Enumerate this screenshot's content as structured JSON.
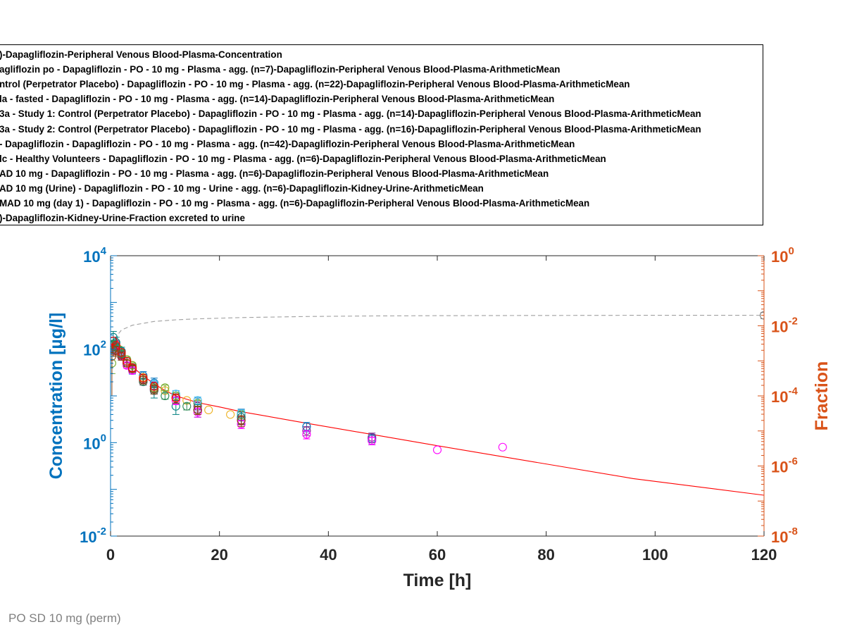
{
  "legend": {
    "entries": [
      ")-Dapagliflozin-Peripheral Venous Blood-Plasma-Concentration",
      "agliflozin po - Dapagliflozin - PO - 10 mg - Plasma - agg. (n=7)-Dapagliflozin-Peripheral Venous Blood-Plasma-ArithmeticMean",
      "ntrol (Perpetrator Placebo) - Dapagliflozin - PO - 10 mg - Plasma - agg. (n=22)-Dapagliflozin-Peripheral Venous Blood-Plasma-ArithmeticMean",
      "la - fasted - Dapagliflozin - PO - 10 mg - Plasma - agg. (n=14)-Dapagliflozin-Peripheral Venous Blood-Plasma-ArithmeticMean",
      "3a - Study 1: Control (Perpetrator Placebo) - Dapagliflozin - PO - 10 mg - Plasma - agg. (n=14)-Dapagliflozin-Peripheral Venous Blood-Plasma-ArithmeticMean",
      "3a - Study 2: Control (Perpetrator Placebo) - Dapagliflozin - PO - 10 mg - Plasma - agg. (n=16)-Dapagliflozin-Peripheral Venous Blood-Plasma-ArithmeticMean",
      " - Dapagliflozin - Dapagliflozin - PO - 10 mg - Plasma - agg. (n=42)-Dapagliflozin-Peripheral Venous Blood-Plasma-ArithmeticMean",
      "lc - Healthy Volunteers - Dapagliflozin - PO - 10 mg - Plasma - agg. (n=6)-Dapagliflozin-Peripheral Venous Blood-Plasma-ArithmeticMean",
      "AD 10 mg - Dapagliflozin - PO - 10 mg - Plasma - agg. (n=6)-Dapagliflozin-Peripheral Venous Blood-Plasma-ArithmeticMean",
      "AD 10 mg (Urine) - Dapagliflozin - PO - 10 mg - Urine - agg. (n=6)-Dapagliflozin-Kidney-Urine-ArithmeticMean",
      "MAD 10 mg (day 1) - Dapagliflozin - PO - 10 mg - Plasma - agg. (n=6)-Dapagliflozin-Peripheral Venous Blood-Plasma-ArithmeticMean",
      ")-Dapagliflozin-Kidney-Urine-Fraction excreted to urine"
    ]
  },
  "footnote": "PO SD 10 mg (perm)",
  "chart_data": {
    "type": "scatter",
    "xlabel": "Time [h]",
    "ylabel": "Concentration [µg/l]",
    "y2label": "Fraction",
    "xlim": [
      0,
      120
    ],
    "xticks": [
      0,
      20,
      40,
      60,
      80,
      100,
      120
    ],
    "ylim": [
      0.01,
      10000
    ],
    "yscale": "log",
    "yticks": [
      {
        "base": "10",
        "exp": "-2"
      },
      {
        "base": "10",
        "exp": "0"
      },
      {
        "base": "10",
        "exp": "2"
      },
      {
        "base": "10",
        "exp": "4"
      }
    ],
    "y2lim": [
      1e-08,
      1
    ],
    "y2scale": "log",
    "y2ticks": [
      {
        "base": "10",
        "exp": "-8"
      },
      {
        "base": "10",
        "exp": "-6"
      },
      {
        "base": "10",
        "exp": "-4"
      },
      {
        "base": "10",
        "exp": "-2"
      },
      {
        "base": "10",
        "exp": "0"
      }
    ],
    "grid": false,
    "legend_placement": "above plot",
    "colors": {
      "left_axis": "#0072BD",
      "right_axis": "#D95319",
      "simulation": "#FF0000",
      "fraction_sim": "#A0A0A0"
    },
    "series": [
      {
        "style": "line",
        "axis": "left",
        "color": "#FF0000",
        "x": [
          0,
          0.25,
          0.5,
          0.75,
          1,
          1.5,
          2,
          3,
          4,
          6,
          8,
          10,
          12,
          16,
          20,
          24,
          36,
          48,
          60,
          72,
          96,
          120
        ],
        "y": [
          0,
          120,
          145,
          135,
          120,
          95,
          78,
          55,
          42,
          27,
          18,
          13,
          10,
          7.2,
          5.8,
          4.6,
          2.6,
          1.5,
          0.86,
          0.5,
          0.17,
          0.075
        ]
      },
      {
        "style": "line",
        "axis": "right",
        "color": "#A0A0A0",
        "dash": true,
        "x": [
          0,
          0.5,
          1,
          2,
          4,
          8,
          12,
          16,
          24,
          36,
          48,
          60,
          72,
          96,
          120
        ],
        "y": [
          0,
          0.0026,
          0.0048,
          0.0076,
          0.0104,
          0.0133,
          0.0148,
          0.0158,
          0.0172,
          0.0184,
          0.0191,
          0.0195,
          0.0197,
          0.0199,
          0.02
        ]
      },
      {
        "style": "marker",
        "axis": "left",
        "color": "#0072BD",
        "x": [
          0.5,
          1,
          1.5,
          2,
          3,
          4,
          6,
          8,
          12,
          16,
          24,
          36,
          48
        ],
        "y": [
          150,
          110,
          95,
          80,
          55,
          40,
          27,
          19,
          10,
          7,
          4.2,
          2.2,
          1.2
        ],
        "err": [
          30,
          25,
          20,
          15,
          10,
          8,
          6,
          5,
          3,
          2,
          1,
          0.5,
          0.3
        ]
      },
      {
        "style": "marker",
        "axis": "left",
        "color": "#EDB120",
        "x": [
          0.5,
          1,
          2,
          3,
          4,
          6,
          8,
          10,
          12,
          14,
          18,
          22
        ],
        "y": [
          90,
          120,
          85,
          60,
          45,
          25,
          16,
          13,
          10,
          8,
          5,
          4
        ]
      },
      {
        "style": "marker",
        "axis": "left",
        "color": "#7E2F8E",
        "x": [
          0.5,
          1,
          2,
          4,
          6,
          8,
          12,
          16,
          24,
          36,
          48
        ],
        "y": [
          120,
          130,
          80,
          40,
          24,
          16,
          9,
          6,
          3.5,
          1.8,
          1.3
        ],
        "err": [
          25,
          20,
          15,
          8,
          5,
          4,
          2,
          1.5,
          1,
          0.4,
          0.3
        ]
      },
      {
        "style": "marker",
        "axis": "left",
        "color": "#77AC30",
        "x": [
          0.25,
          0.5,
          1,
          1.5,
          2,
          3,
          4,
          6,
          8,
          10,
          12,
          16,
          24
        ],
        "y": [
          50,
          100,
          110,
          100,
          85,
          60,
          45,
          24,
          15,
          15,
          10,
          7,
          4
        ],
        "err": [
          20,
          20,
          15,
          15,
          10,
          8,
          6,
          4,
          3,
          2,
          2,
          1,
          0.8
        ]
      },
      {
        "style": "marker",
        "axis": "left",
        "color": "#4DBEEE",
        "x": [
          1,
          2,
          4,
          8,
          12,
          16,
          24
        ],
        "y": [
          100,
          70,
          35,
          18,
          11,
          8,
          4.2
        ],
        "err": [
          20,
          12,
          6,
          3,
          2,
          1.5,
          0.8
        ]
      },
      {
        "style": "marker",
        "axis": "left",
        "color": "#A2142F",
        "x": [
          1,
          2,
          3,
          4,
          6,
          8,
          12,
          16,
          24
        ],
        "y": [
          110,
          75,
          50,
          38,
          22,
          14,
          9,
          5,
          3
        ],
        "err": [
          20,
          12,
          8,
          6,
          4,
          3,
          2,
          1,
          0.6
        ]
      },
      {
        "style": "marker",
        "axis": "left",
        "color": "#008080",
        "x": [
          0.5,
          1,
          2,
          4,
          8,
          12,
          16,
          24
        ],
        "y": [
          180,
          140,
          90,
          38,
          14,
          6,
          5,
          3.5
        ],
        "err": [
          60,
          40,
          20,
          8,
          5,
          2,
          1.5,
          1
        ]
      },
      {
        "style": "marker",
        "axis": "left",
        "color": "#FF00FF",
        "x": [
          0.5,
          1,
          2,
          3,
          4,
          6,
          8,
          12,
          16,
          24,
          36,
          48,
          60,
          72
        ],
        "y": [
          100,
          90,
          70,
          45,
          35,
          20,
          13,
          8,
          4.5,
          2.5,
          1.5,
          1.1,
          0.7,
          0.8
        ],
        "err": [
          20,
          15,
          10,
          6,
          5,
          3,
          2,
          1.5,
          1,
          0.5,
          0.3,
          0.2,
          0,
          0
        ]
      },
      {
        "style": "marker",
        "axis": "left",
        "color": "#2E8B57",
        "x": [
          0.25,
          0.5,
          1,
          2,
          4,
          6,
          8,
          10,
          14
        ],
        "y": [
          120,
          130,
          110,
          80,
          40,
          20,
          13,
          10,
          6
        ],
        "err": [
          20,
          20,
          15,
          10,
          6,
          3,
          2,
          1.5,
          1
        ]
      },
      {
        "style": "marker",
        "axis": "left",
        "color": "#8B4513",
        "x": [
          0.25,
          0.5,
          1,
          2,
          3,
          4,
          6,
          8,
          12,
          16,
          24
        ],
        "y": [
          70,
          100,
          95,
          70,
          50,
          38,
          22,
          14,
          9,
          5,
          3
        ],
        "err": [
          60,
          30,
          20,
          12,
          8,
          6,
          4,
          3,
          2,
          1,
          0.8
        ]
      },
      {
        "style": "marker",
        "axis": "left",
        "color": "#FF0000",
        "x": [
          0.5,
          1,
          2,
          3,
          4,
          6,
          8,
          12
        ],
        "y": [
          150,
          120,
          85,
          55,
          40,
          24,
          16,
          9
        ]
      },
      {
        "style": "marker",
        "axis": "right",
        "color": "#808080",
        "x": [
          120
        ],
        "y": [
          0.0199
        ],
        "err": [
          0.004
        ]
      }
    ]
  }
}
